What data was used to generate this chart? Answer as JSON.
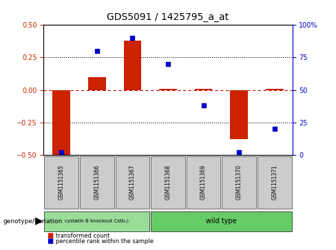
{
  "title": "GDS5091 / 1425795_a_at",
  "samples": [
    "GSM1151365",
    "GSM1151366",
    "GSM1151367",
    "GSM1151368",
    "GSM1151369",
    "GSM1151370",
    "GSM1151371"
  ],
  "red_bars": [
    -0.5,
    0.1,
    0.38,
    0.01,
    0.01,
    -0.38,
    0.01
  ],
  "blue_dots": [
    2.0,
    80.0,
    90.0,
    70.0,
    38.0,
    2.0,
    20.0
  ],
  "ylim_left": [
    -0.5,
    0.5
  ],
  "ylim_right": [
    0,
    100
  ],
  "yticks_left": [
    -0.5,
    -0.25,
    0.0,
    0.25,
    0.5
  ],
  "yticks_right": [
    0,
    25,
    50,
    75,
    100
  ],
  "bar_color": "#cc2200",
  "dot_color": "#0000cc",
  "dashed_color": "#cc0000",
  "dotted_color": "#000000",
  "bg_color": "#ffffff",
  "group1_label": "cystatin B knockout Cstb-/-",
  "group2_label": "wild type",
  "group1_color": "#99dd99",
  "group2_color": "#66cc66",
  "group1_indices": [
    0,
    1,
    2
  ],
  "group2_indices": [
    3,
    4,
    5,
    6
  ],
  "genotype_label": "genotype/variation",
  "legend_red": "transformed count",
  "legend_blue": "percentile rank within the sample",
  "tick_bg": "#cccccc",
  "title_fontsize": 10,
  "bar_width": 0.5
}
